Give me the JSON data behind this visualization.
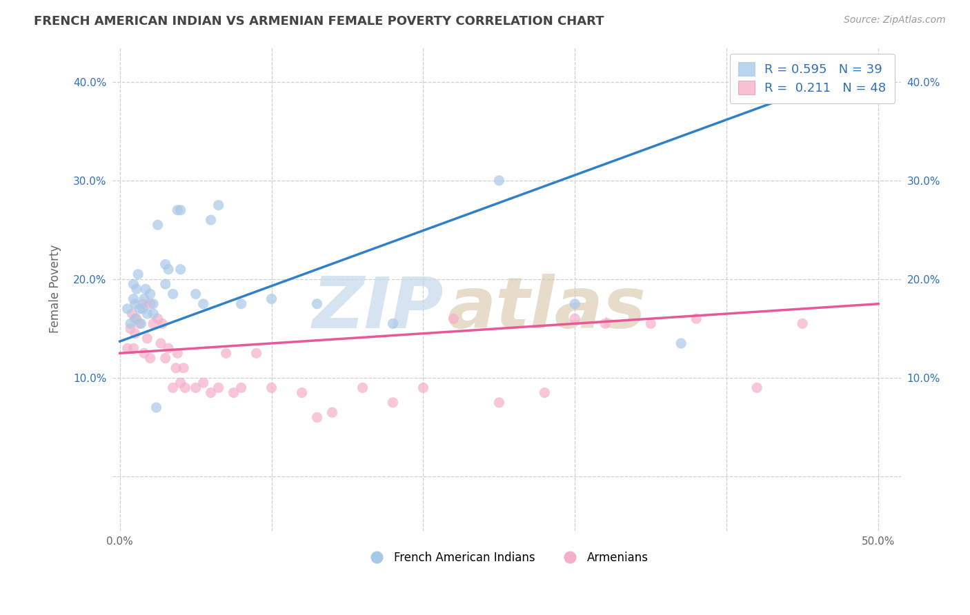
{
  "title": "FRENCH AMERICAN INDIAN VS ARMENIAN FEMALE POVERTY CORRELATION CHART",
  "source": "Source: ZipAtlas.com",
  "ylabel": "Female Poverty",
  "xlim": [
    -0.005,
    0.515
  ],
  "ylim": [
    -0.055,
    0.435
  ],
  "xticks": [
    0.0,
    0.1,
    0.2,
    0.3,
    0.4,
    0.5
  ],
  "xtick_labels": [
    "0.0%",
    "",
    "",
    "",
    "",
    "50.0%"
  ],
  "yticks": [
    0.0,
    0.1,
    0.2,
    0.3,
    0.4
  ],
  "ytick_labels": [
    "",
    "10.0%",
    "20.0%",
    "30.0%",
    "40.0%"
  ],
  "r_blue": "0.595",
  "n_blue": "39",
  "r_pink": "0.211",
  "n_pink": "48",
  "blue_scatter": [
    [
      0.005,
      0.17
    ],
    [
      0.007,
      0.155
    ],
    [
      0.009,
      0.18
    ],
    [
      0.009,
      0.195
    ],
    [
      0.01,
      0.16
    ],
    [
      0.01,
      0.175
    ],
    [
      0.011,
      0.19
    ],
    [
      0.012,
      0.205
    ],
    [
      0.013,
      0.17
    ],
    [
      0.014,
      0.155
    ],
    [
      0.015,
      0.17
    ],
    [
      0.016,
      0.18
    ],
    [
      0.017,
      0.19
    ],
    [
      0.018,
      0.165
    ],
    [
      0.02,
      0.185
    ],
    [
      0.022,
      0.175
    ],
    [
      0.022,
      0.165
    ],
    [
      0.024,
      0.07
    ],
    [
      0.025,
      0.255
    ],
    [
      0.03,
      0.215
    ],
    [
      0.03,
      0.195
    ],
    [
      0.032,
      0.21
    ],
    [
      0.035,
      0.185
    ],
    [
      0.038,
      0.27
    ],
    [
      0.04,
      0.27
    ],
    [
      0.04,
      0.21
    ],
    [
      0.05,
      0.185
    ],
    [
      0.055,
      0.175
    ],
    [
      0.06,
      0.26
    ],
    [
      0.065,
      0.275
    ],
    [
      0.08,
      0.175
    ],
    [
      0.1,
      0.18
    ],
    [
      0.13,
      0.175
    ],
    [
      0.18,
      0.155
    ],
    [
      0.25,
      0.3
    ],
    [
      0.3,
      0.175
    ],
    [
      0.37,
      0.135
    ],
    [
      0.48,
      0.39
    ],
    [
      0.49,
      0.41
    ]
  ],
  "pink_scatter": [
    [
      0.005,
      0.13
    ],
    [
      0.007,
      0.15
    ],
    [
      0.008,
      0.165
    ],
    [
      0.009,
      0.13
    ],
    [
      0.01,
      0.145
    ],
    [
      0.011,
      0.16
    ],
    [
      0.013,
      0.155
    ],
    [
      0.015,
      0.175
    ],
    [
      0.016,
      0.125
    ],
    [
      0.018,
      0.14
    ],
    [
      0.02,
      0.12
    ],
    [
      0.02,
      0.175
    ],
    [
      0.022,
      0.155
    ],
    [
      0.025,
      0.16
    ],
    [
      0.027,
      0.135
    ],
    [
      0.028,
      0.155
    ],
    [
      0.03,
      0.12
    ],
    [
      0.032,
      0.13
    ],
    [
      0.035,
      0.09
    ],
    [
      0.037,
      0.11
    ],
    [
      0.038,
      0.125
    ],
    [
      0.04,
      0.095
    ],
    [
      0.042,
      0.11
    ],
    [
      0.043,
      0.09
    ],
    [
      0.05,
      0.09
    ],
    [
      0.055,
      0.095
    ],
    [
      0.06,
      0.085
    ],
    [
      0.065,
      0.09
    ],
    [
      0.07,
      0.125
    ],
    [
      0.075,
      0.085
    ],
    [
      0.08,
      0.09
    ],
    [
      0.09,
      0.125
    ],
    [
      0.1,
      0.09
    ],
    [
      0.12,
      0.085
    ],
    [
      0.13,
      0.06
    ],
    [
      0.14,
      0.065
    ],
    [
      0.16,
      0.09
    ],
    [
      0.18,
      0.075
    ],
    [
      0.2,
      0.09
    ],
    [
      0.22,
      0.16
    ],
    [
      0.25,
      0.075
    ],
    [
      0.28,
      0.085
    ],
    [
      0.3,
      0.16
    ],
    [
      0.32,
      0.155
    ],
    [
      0.35,
      0.155
    ],
    [
      0.38,
      0.16
    ],
    [
      0.42,
      0.09
    ],
    [
      0.45,
      0.155
    ]
  ],
  "blue_line_x": [
    0.0,
    0.495
  ],
  "blue_line_y": [
    0.137,
    0.415
  ],
  "pink_line_x": [
    0.0,
    0.5
  ],
  "pink_line_y": [
    0.125,
    0.175
  ],
  "blue_scatter_color": "#a8c8e8",
  "pink_scatter_color": "#f5afc8",
  "blue_line_color": "#3080c8",
  "pink_line_color": "#e85898",
  "legend_box_blue": "#b8d4ee",
  "legend_box_pink": "#f8c0d0",
  "text_color_blue": "#3070b8",
  "background": "#ffffff",
  "grid_color": "#c8d0d8"
}
